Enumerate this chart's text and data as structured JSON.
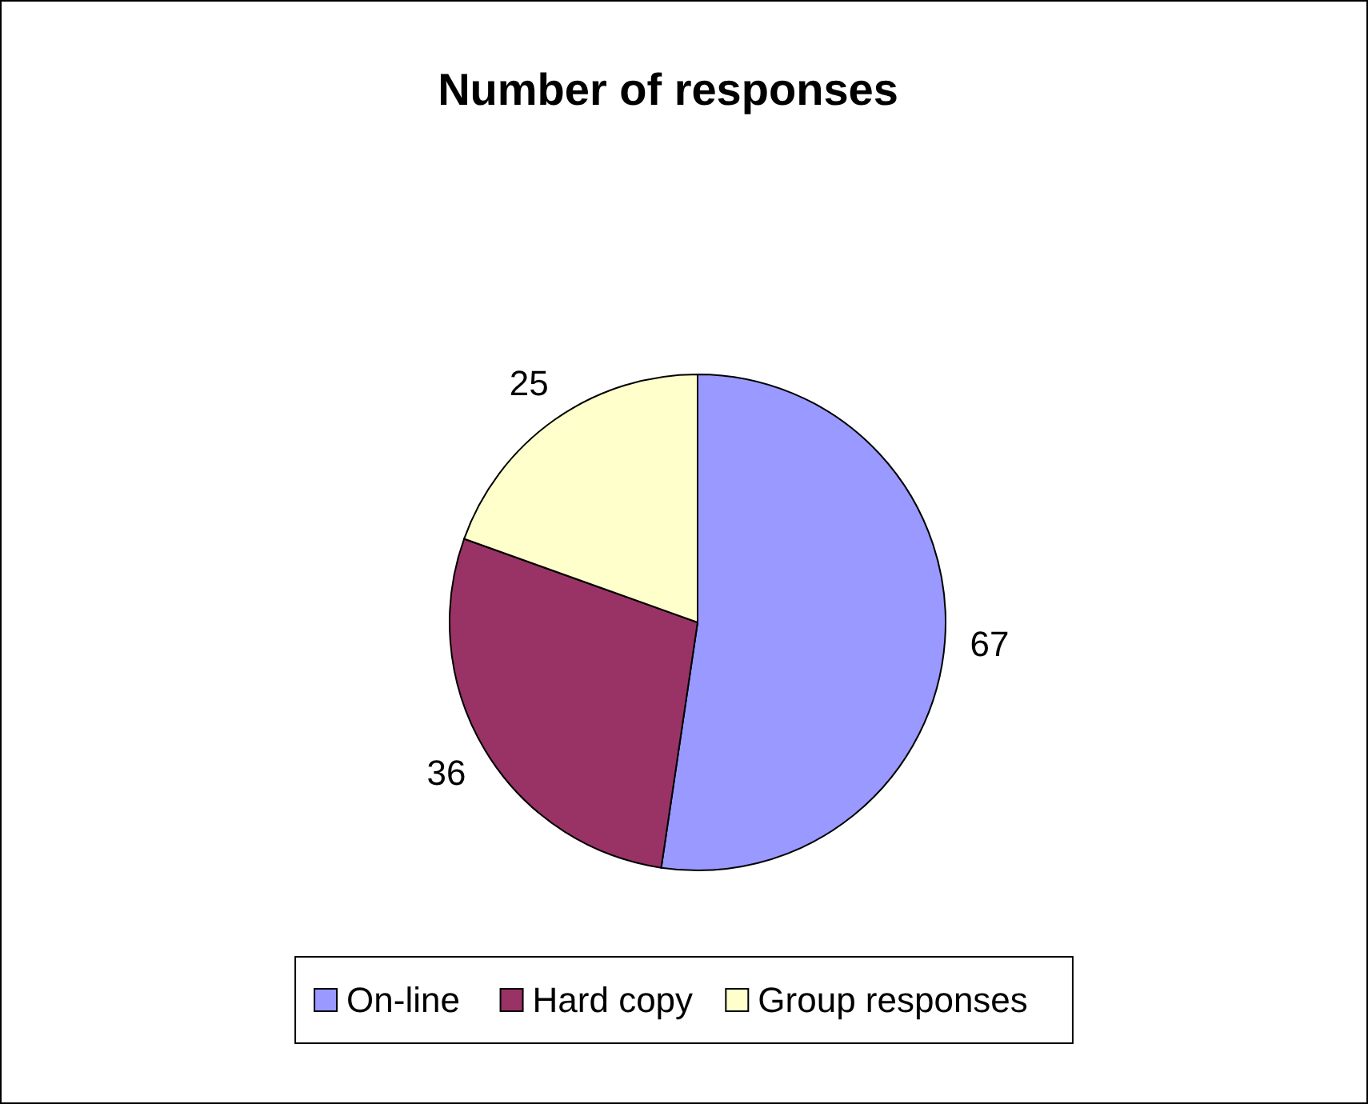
{
  "chart_data": {
    "type": "pie",
    "title": "Number of responses",
    "categories": [
      "On-line",
      "Hard copy",
      "Group responses"
    ],
    "values": [
      67,
      36,
      25
    ],
    "colors": [
      "#9999ff",
      "#993366",
      "#ffffcc"
    ],
    "data_labels": true,
    "legend": "bottom"
  }
}
